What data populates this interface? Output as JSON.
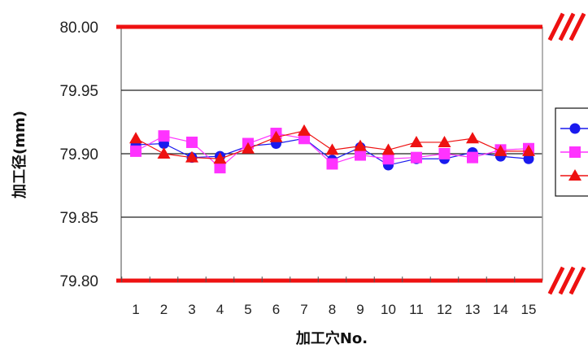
{
  "chart_data": {
    "type": "line",
    "title": "",
    "xlabel": "加工穴No.",
    "ylabel": "加工径(mm)",
    "categories": [
      "1",
      "2",
      "3",
      "4",
      "5",
      "6",
      "7",
      "8",
      "9",
      "10",
      "11",
      "12",
      "13",
      "14",
      "15"
    ],
    "y_ticks": [
      "79.80",
      "79.85",
      "79.90",
      "79.95",
      "80.00"
    ],
    "ylim": [
      79.8,
      80.0
    ],
    "grid": "horizontal",
    "reference_lines": [
      79.8,
      80.0
    ],
    "reference_line_color": "#ee1111",
    "legend_position": "right",
    "series": [
      {
        "marker": "circle",
        "color": "#1a1aee",
        "values": [
          79.907,
          79.908,
          79.897,
          79.898,
          79.906,
          79.908,
          79.912,
          79.895,
          79.905,
          79.891,
          79.896,
          79.896,
          79.901,
          79.898,
          79.896
        ]
      },
      {
        "marker": "square",
        "color": "#ff33ff",
        "values": [
          79.902,
          79.914,
          79.909,
          79.889,
          79.908,
          79.916,
          79.912,
          79.892,
          79.899,
          79.896,
          79.897,
          79.9,
          79.897,
          79.903,
          79.904
        ]
      },
      {
        "marker": "triangle",
        "color": "#ee1111",
        "values": [
          79.912,
          79.9,
          79.897,
          79.896,
          79.904,
          79.913,
          79.918,
          79.903,
          79.906,
          79.903,
          79.909,
          79.909,
          79.912,
          79.902,
          79.902
        ]
      }
    ]
  }
}
